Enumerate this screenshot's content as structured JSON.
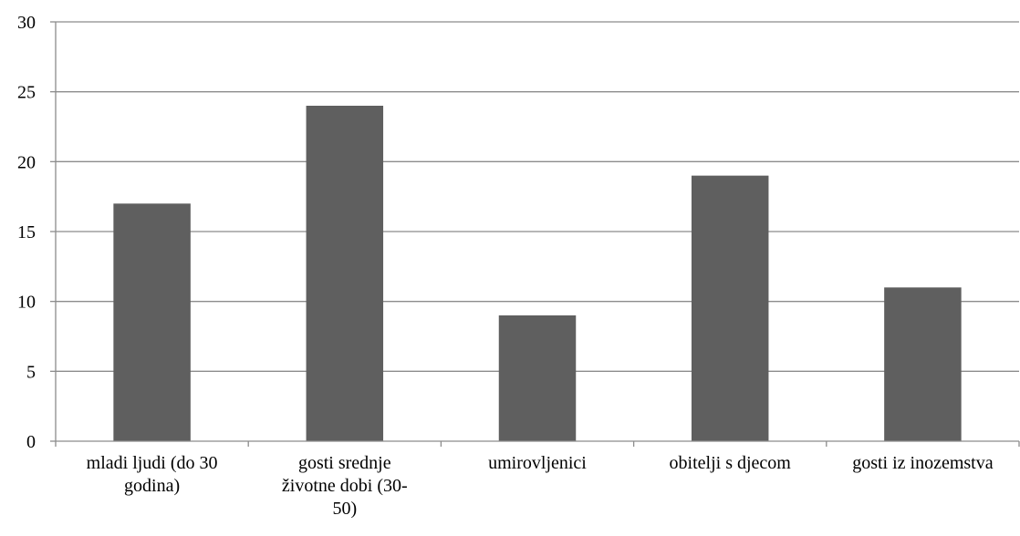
{
  "chart_data": {
    "type": "bar",
    "title": "",
    "xlabel": "",
    "ylabel": "",
    "ylim": [
      0,
      30
    ],
    "yticks": [
      0,
      5,
      10,
      15,
      20,
      25,
      30
    ],
    "ytick_labels": [
      "0",
      "5",
      "10",
      "15",
      "20",
      "25",
      "30"
    ],
    "grid": true,
    "categories": [
      "mladi ljudi (do 30 godina)",
      "gosti srednje životne dobi (30-50)",
      "umirovljenici",
      "obitelji s djecom",
      "gosti iz inozemstva"
    ],
    "category_label_lines": [
      [
        "mladi ljudi (do 30",
        "godina)"
      ],
      [
        "gosti srednje",
        "životne dobi (30-",
        "50)"
      ],
      [
        "umirovljenici"
      ],
      [
        "obitelji s djecom"
      ],
      [
        "gosti iz inozemstva"
      ]
    ],
    "values": [
      17,
      24,
      9,
      19,
      11
    ],
    "bar_color": "#5f5f5f"
  }
}
